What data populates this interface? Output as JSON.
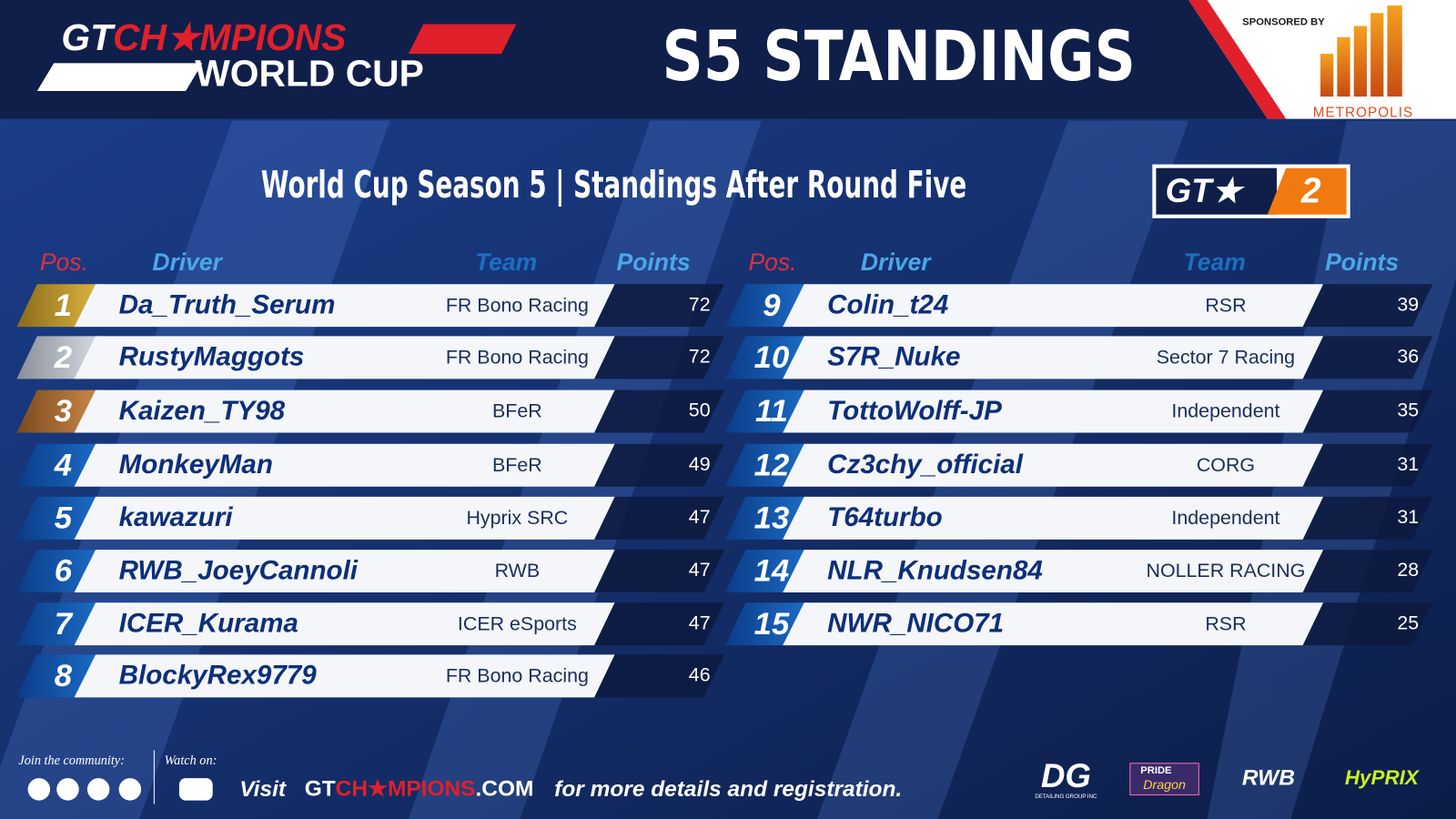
{
  "header": {
    "logo": {
      "gt": "GT",
      "champions": "CH★MPIONS",
      "world_cup": "WORLD CUP"
    },
    "title": "S5 STANDINGS",
    "sponsor_label": "SPONSORED BY",
    "sponsor_name": "METROPOLIS"
  },
  "subtitle": "World Cup Season 5 | Standings After Round Five",
  "class_badge": {
    "left": "GT★",
    "right": "2"
  },
  "table": {
    "columns": [
      "Pos.",
      "Driver",
      "Team",
      "Points"
    ],
    "left_rows": [
      [
        1,
        "Da_Truth_Serum",
        "FR Bono Racing",
        72
      ],
      [
        2,
        "RustyMaggots",
        "FR Bono Racing",
        72
      ],
      [
        3,
        "Kaizen_TY98",
        "BFeR",
        50
      ],
      [
        4,
        "MonkeyMan",
        "BFeR",
        49
      ],
      [
        5,
        "kawazuri",
        "Hyprix SRC",
        47
      ],
      [
        6,
        "RWB_JoeyCannoli",
        "RWB",
        47
      ],
      [
        7,
        "ICER_Kurama",
        "ICER eSports",
        47
      ],
      [
        8,
        "BlockyRex9779",
        "FR Bono Racing",
        46
      ]
    ],
    "right_rows": [
      [
        9,
        "Colin_t24",
        "RSR",
        39
      ],
      [
        10,
        "S7R_Nuke",
        "Sector 7 Racing",
        36
      ],
      [
        11,
        "TottoWolff-JP",
        "Independent",
        35
      ],
      [
        12,
        "Cz3chy_official",
        "CORG",
        31
      ],
      [
        13,
        "T64turbo",
        "Independent",
        31
      ],
      [
        14,
        "NLR_Knudsen84",
        "NOLLER RACING",
        28
      ],
      [
        15,
        "NWR_NICO71",
        "RSR",
        25
      ]
    ]
  },
  "footer": {
    "join": "Join the community:",
    "watch": "Watch on:",
    "visit": "Visit",
    "url": {
      "gt": "GT",
      "champions": "CH★MPIONS",
      "com": ".COM"
    },
    "more": "for more details and registration.",
    "sponsors": {
      "dg": "DG",
      "dg_sub": "DETAILING GROUP INC",
      "pride": "PRIDE",
      "dragon": "Dragon",
      "rwb": "RWB",
      "hyprix": "HyPRIX"
    }
  }
}
